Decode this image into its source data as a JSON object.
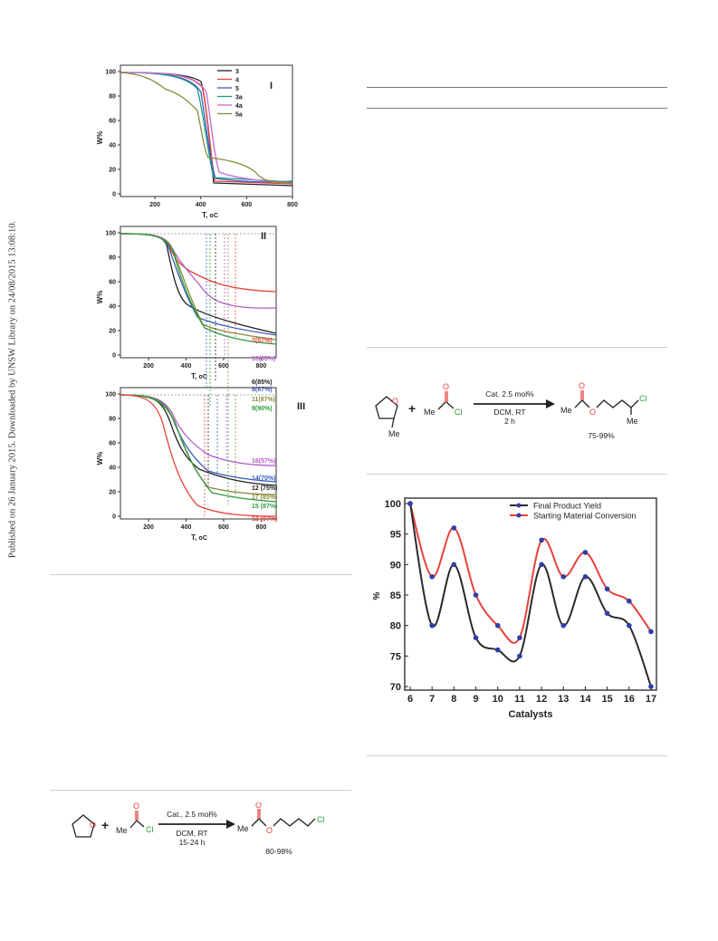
{
  "sidebar_text": "Published on 26 January 2015. Downloaded by UNSW Library on 24/08/2015 13:08:10.",
  "tga": {
    "xlabel": "T, ",
    "xlabel_unit": "oC",
    "ylabel": "W%",
    "panels": [
      {
        "label": "I",
        "x_ticks": [
          "200",
          "400",
          "600",
          "800"
        ],
        "y_ticks": [
          "0",
          "20",
          "40",
          "60",
          "80",
          "100"
        ],
        "legend": [
          "3",
          "4",
          "5",
          "3a",
          "4a",
          "5a"
        ],
        "colors": [
          "#222222",
          "#e8413b",
          "#3c5fbf",
          "#1b9a8a",
          "#c46ad2",
          "#8a8a3c"
        ]
      },
      {
        "label": "II",
        "x_ticks": [
          "200",
          "400",
          "600",
          "800"
        ],
        "y_ticks": [
          "0",
          "20",
          "40",
          "60",
          "80",
          "100"
        ],
        "end_labels": [
          "7(57%)",
          "10(63%)",
          "6(85%)",
          "8(87%)",
          "11(87%)",
          "9(90%)"
        ],
        "colors": [
          "#e8413b",
          "#b55cc8",
          "#222222",
          "#3c5fbf",
          "#8a8a3c",
          "#2d9b3e"
        ]
      },
      {
        "label": "III",
        "x_ticks": [
          "200",
          "400",
          "600",
          "800"
        ],
        "y_ticks": [
          "0",
          "20",
          "40",
          "60",
          "80",
          "100"
        ],
        "end_labels": [
          "16(57%)",
          "14(70%)",
          "12 (75%)",
          "17 (85%)",
          "15 (87%)",
          "13 (97%)"
        ],
        "colors": [
          "#b55cc8",
          "#3c5fbf",
          "#222222",
          "#8a8a3c",
          "#2d9b3e",
          "#e8413b"
        ]
      }
    ]
  },
  "scheme_right": {
    "reagent1_sub": "Me",
    "plus": "+",
    "reagent2_me": "Me",
    "reagent2_cl": "Cl",
    "reagent2_o": "O",
    "ring_o": "O",
    "cond1": "Cat. 2.5 mol%",
    "cond2": "DCM, RT",
    "cond3": "2 h",
    "product_me": "Me",
    "product_o": "O",
    "product_o2": "O",
    "product_cl": "Cl",
    "product_me2": "Me",
    "yield": "75-99%"
  },
  "scheme_left": {
    "plus": "+",
    "ring_o": "O",
    "reagent_me": "Me",
    "reagent_cl": "Cl",
    "reagent_o": "O",
    "cond1": "Cat., 2.5 mol%",
    "cond2": "DCM, RT",
    "cond3": "15-24 h",
    "product_me": "Me",
    "product_o": "O",
    "product_o2": "O",
    "product_cl": "Cl",
    "yield": "80-98%"
  },
  "chart_data": {
    "type": "line",
    "title": "",
    "xlabel": "Catalysts",
    "ylabel": "%",
    "categories": [
      "6",
      "7",
      "8",
      "9",
      "10",
      "11",
      "12",
      "13",
      "14",
      "15",
      "16",
      "17"
    ],
    "ylim": [
      70,
      100
    ],
    "y_ticks": [
      "70",
      "75",
      "80",
      "85",
      "90",
      "95",
      "100"
    ],
    "legend_position": "top-right",
    "series": [
      {
        "name": "Final Product Yield",
        "color": "#2a2a2a",
        "marker": "#2f3ea8",
        "values": [
          100,
          80,
          90,
          78,
          76,
          75,
          90,
          80,
          88,
          82,
          80,
          70
        ]
      },
      {
        "name": "Starting Material Conversion",
        "color": "#e8413b",
        "marker": "#2f3ea8",
        "values": [
          100,
          88,
          96,
          85,
          80,
          78,
          94,
          88,
          92,
          86,
          84,
          79
        ]
      }
    ]
  }
}
